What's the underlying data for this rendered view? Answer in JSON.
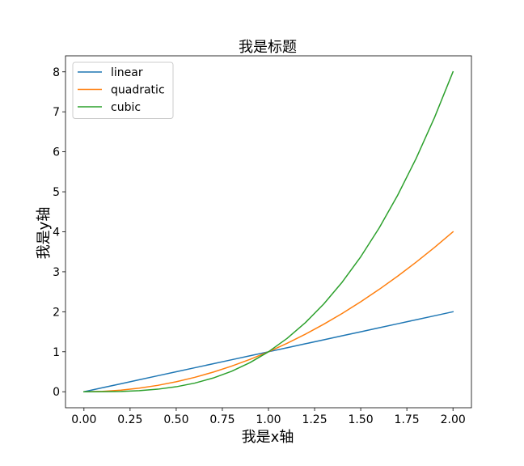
{
  "chart_data": {
    "type": "line",
    "title": "我是标题",
    "xlabel": "我是x轴",
    "ylabel": "我是y轴",
    "xlim": [
      -0.1,
      2.1
    ],
    "ylim": [
      -0.4,
      8.4
    ],
    "xticks": [
      "0.00",
      "0.25",
      "0.50",
      "0.75",
      "1.00",
      "1.25",
      "1.50",
      "1.75",
      "2.00"
    ],
    "yticks": [
      "0",
      "1",
      "2",
      "3",
      "4",
      "5",
      "6",
      "7",
      "8"
    ],
    "x": [
      0.0,
      0.1,
      0.2,
      0.3,
      0.4,
      0.5,
      0.6,
      0.7,
      0.8,
      0.9,
      1.0,
      1.1,
      1.2,
      1.3,
      1.4,
      1.5,
      1.6,
      1.7,
      1.8,
      1.9,
      2.0
    ],
    "series": [
      {
        "name": "linear",
        "color": "#1f77b4",
        "values": [
          0.0,
          0.1,
          0.2,
          0.3,
          0.4,
          0.5,
          0.6,
          0.7,
          0.8,
          0.9,
          1.0,
          1.1,
          1.2,
          1.3,
          1.4,
          1.5,
          1.6,
          1.7,
          1.8,
          1.9,
          2.0
        ]
      },
      {
        "name": "quadratic",
        "color": "#ff7f0e",
        "values": [
          0.0,
          0.01,
          0.04,
          0.09,
          0.16,
          0.25,
          0.36,
          0.49,
          0.64,
          0.81,
          1.0,
          1.21,
          1.44,
          1.69,
          1.96,
          2.25,
          2.56,
          2.89,
          3.24,
          3.61,
          4.0
        ]
      },
      {
        "name": "cubic",
        "color": "#2ca02c",
        "values": [
          0.0,
          0.001,
          0.008,
          0.027,
          0.064,
          0.125,
          0.216,
          0.343,
          0.512,
          0.729,
          1.0,
          1.331,
          1.728,
          2.197,
          2.744,
          3.375,
          4.096,
          4.913,
          5.832,
          6.859,
          8.0
        ]
      }
    ],
    "legend": "top-left",
    "grid": false
  }
}
